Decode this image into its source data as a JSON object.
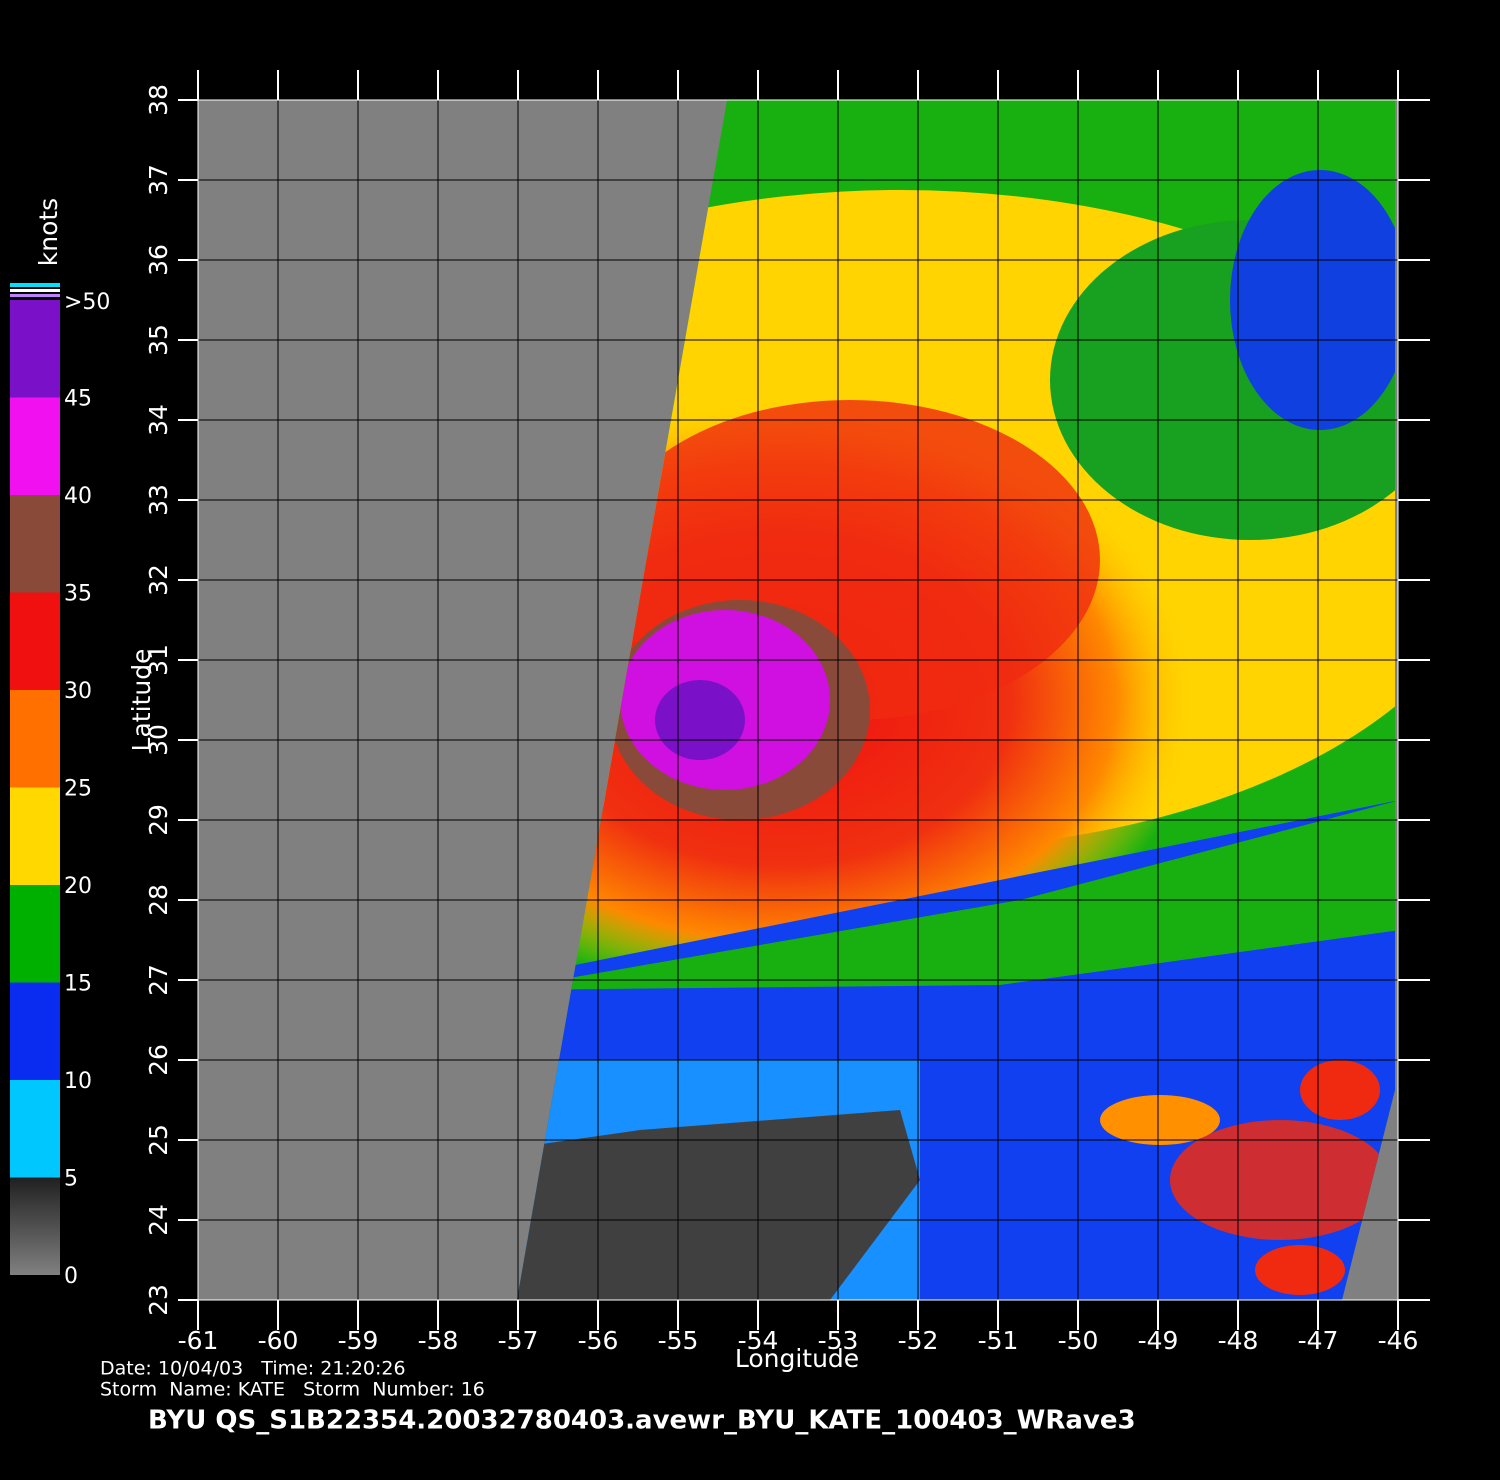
{
  "map": {
    "title": "BYU  QS_S1B22354.20032780403.avewr_BYU_KATE_100403_WRave3",
    "date_line": "Date: 10/04/03   Time: 21:20:26",
    "storm_line": "Storm  Name: KATE   Storm  Number: 16",
    "x_label": "Longitude",
    "y_label": "Latitude",
    "xlim": [
      -61,
      -46
    ],
    "ylim": [
      23,
      38
    ],
    "xticks": [
      -61,
      -60,
      -59,
      -58,
      -57,
      -56,
      -55,
      -54,
      -53,
      -52,
      -51,
      -50,
      -49,
      -48,
      -47,
      -46
    ],
    "yticks": [
      23,
      24,
      25,
      26,
      27,
      28,
      29,
      30,
      31,
      32,
      33,
      34,
      35,
      36,
      37,
      38
    ],
    "colorbar": {
      "label": "knots",
      "lim": [
        0,
        50
      ],
      "ticks": [
        0,
        5,
        10,
        15,
        20,
        25,
        30,
        35,
        40,
        45,
        {
          "value": 50,
          "label": ">50"
        }
      ],
      "colors": [
        "#3a3a3a",
        "#00c8ff",
        "#0a2cf0",
        "#00b000",
        "#ffd800",
        "#ff7000",
        "#f01010",
        "#8a4a3a",
        "#f010f0",
        "#7a10c8"
      ]
    }
  }
}
